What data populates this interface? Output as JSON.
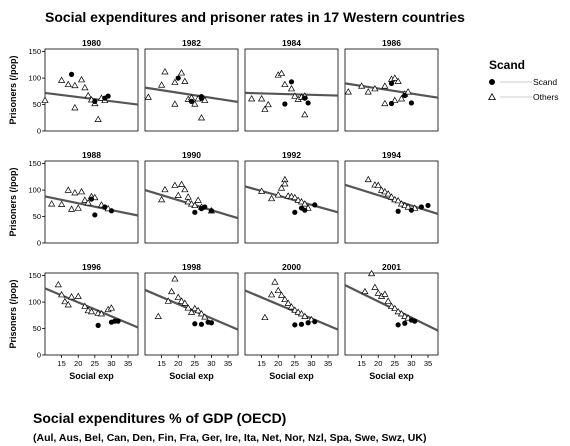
{
  "title": "Social expenditures and prisoner rates in 17 Western countries",
  "bottom_title": "Social expenditures % of GDP (OECD)",
  "countries": "(Aul, Aus, Bel, Can, Den, Fin, Fra, Ger, Ire, Ita, Net, Nor, Nzl, Spa, Swe, Swz, UK)",
  "colors": {
    "points": "#000000",
    "fit_line": "#555555",
    "frame": "#000000"
  },
  "chart_data": {
    "type": "scatter",
    "layout": "4x3 small multiples",
    "xlabel": "Social exp",
    "ylabel": "Prisoners (/pop)",
    "xlim": [
      10,
      38
    ],
    "ylim": [
      0,
      155
    ],
    "x_ticks": [
      15,
      20,
      25,
      30,
      35
    ],
    "y_ticks": [
      0,
      50,
      100,
      150
    ],
    "legend": {
      "title": "Scand",
      "placement": "right",
      "items": [
        {
          "label": "Scand",
          "marker": "filled-circle"
        },
        {
          "label": "Others",
          "marker": "open-triangle"
        }
      ]
    },
    "panels": [
      {
        "year": "1980",
        "line": [
          [
            10,
            72
          ],
          [
            38,
            50
          ]
        ],
        "scand": [
          [
            18,
            107
          ],
          [
            28,
            62
          ],
          [
            29,
            66
          ],
          [
            25,
            56
          ]
        ],
        "others": [
          [
            10,
            58
          ],
          [
            15,
            96
          ],
          [
            17,
            88
          ],
          [
            19,
            86
          ],
          [
            19,
            44
          ],
          [
            21,
            97
          ],
          [
            22,
            82
          ],
          [
            23,
            67
          ],
          [
            24,
            59
          ],
          [
            25,
            52
          ],
          [
            27,
            62
          ],
          [
            28,
            58
          ],
          [
            26,
            22
          ]
        ]
      },
      {
        "year": "1982",
        "line": [
          [
            10,
            82
          ],
          [
            38,
            55
          ]
        ],
        "scand": [
          [
            20,
            100
          ],
          [
            27,
            65
          ],
          [
            27,
            62
          ],
          [
            24,
            56
          ]
        ],
        "others": [
          [
            11,
            64
          ],
          [
            15,
            87
          ],
          [
            16,
            112
          ],
          [
            19,
            92
          ],
          [
            19,
            51
          ],
          [
            21,
            110
          ],
          [
            22,
            94
          ],
          [
            23,
            60
          ],
          [
            24,
            63
          ],
          [
            25,
            51
          ],
          [
            26,
            61
          ],
          [
            28,
            58
          ],
          [
            27,
            25
          ]
        ]
      },
      {
        "year": "1984",
        "line": [
          [
            10,
            72
          ],
          [
            38,
            67
          ]
        ],
        "scand": [
          [
            24,
            93
          ],
          [
            29,
            53
          ],
          [
            28,
            62
          ],
          [
            22,
            51
          ]
        ],
        "others": [
          [
            12,
            61
          ],
          [
            15,
            61
          ],
          [
            16,
            41
          ],
          [
            17,
            50
          ],
          [
            20,
            106
          ],
          [
            21,
            109
          ],
          [
            22,
            88
          ],
          [
            24,
            80
          ],
          [
            25,
            66
          ],
          [
            26,
            60
          ],
          [
            27,
            64
          ],
          [
            28,
            66
          ],
          [
            28,
            31
          ]
        ]
      },
      {
        "year": "1986",
        "line": [
          [
            10,
            90
          ],
          [
            38,
            63
          ]
        ],
        "scand": [
          [
            24,
            90
          ],
          [
            30,
            53
          ],
          [
            28,
            67
          ],
          [
            24,
            52
          ]
        ],
        "others": [
          [
            11,
            74
          ],
          [
            15,
            85
          ],
          [
            17,
            74
          ],
          [
            19,
            80
          ],
          [
            22,
            85
          ],
          [
            24,
            98
          ],
          [
            25,
            100
          ],
          [
            26,
            94
          ],
          [
            27,
            61
          ],
          [
            28,
            70
          ],
          [
            29,
            74
          ],
          [
            25,
            58
          ],
          [
            22,
            52
          ]
        ]
      },
      {
        "year": "1988",
        "line": [
          [
            10,
            88
          ],
          [
            38,
            52
          ]
        ],
        "scand": [
          [
            24,
            83
          ],
          [
            30,
            61
          ],
          [
            28,
            68
          ],
          [
            25,
            53
          ]
        ],
        "others": [
          [
            12,
            74
          ],
          [
            15,
            73
          ],
          [
            17,
            100
          ],
          [
            18,
            64
          ],
          [
            19,
            95
          ],
          [
            20,
            66
          ],
          [
            21,
            97
          ],
          [
            22,
            81
          ],
          [
            23,
            76
          ],
          [
            24,
            88
          ],
          [
            25,
            86
          ],
          [
            27,
            72
          ],
          [
            29,
            65
          ]
        ]
      },
      {
        "year": "1990",
        "line": [
          [
            10,
            100
          ],
          [
            38,
            47
          ]
        ],
        "scand": [
          [
            28,
            68
          ],
          [
            25,
            58
          ],
          [
            30,
            61
          ],
          [
            27,
            65
          ]
        ],
        "others": [
          [
            15,
            82
          ],
          [
            16,
            101
          ],
          [
            19,
            109
          ],
          [
            20,
            90
          ],
          [
            21,
            111
          ],
          [
            22,
            101
          ],
          [
            23,
            78
          ],
          [
            23,
            87
          ],
          [
            24,
            74
          ],
          [
            25,
            71
          ],
          [
            26,
            81
          ],
          [
            27,
            68
          ],
          [
            30,
            61
          ]
        ]
      },
      {
        "year": "1992",
        "line": [
          [
            10,
            107
          ],
          [
            38,
            58
          ]
        ],
        "scand": [
          [
            25,
            58
          ],
          [
            31,
            72
          ],
          [
            28,
            62
          ],
          [
            27,
            66
          ]
        ],
        "others": [
          [
            15,
            98
          ],
          [
            18,
            84
          ],
          [
            20,
            91
          ],
          [
            21,
            104
          ],
          [
            22,
            120
          ],
          [
            22,
            112
          ],
          [
            23,
            89
          ],
          [
            24,
            88
          ],
          [
            25,
            86
          ],
          [
            26,
            81
          ],
          [
            27,
            78
          ],
          [
            28,
            74
          ],
          [
            29,
            66
          ]
        ]
      },
      {
        "year": "1994",
        "line": [
          [
            10,
            110
          ],
          [
            38,
            55
          ]
        ],
        "scand": [
          [
            26,
            60
          ],
          [
            33,
            68
          ],
          [
            35,
            71
          ],
          [
            30,
            62
          ]
        ],
        "others": [
          [
            17,
            120
          ],
          [
            19,
            110
          ],
          [
            20,
            109
          ],
          [
            21,
            100
          ],
          [
            22,
            97
          ],
          [
            23,
            93
          ],
          [
            24,
            87
          ],
          [
            25,
            82
          ],
          [
            26,
            80
          ],
          [
            27,
            74
          ],
          [
            28,
            71
          ],
          [
            29,
            68
          ],
          [
            31,
            66
          ]
        ]
      },
      {
        "year": "1996",
        "line": [
          [
            10,
            126
          ],
          [
            38,
            52
          ]
        ],
        "scand": [
          [
            26,
            56
          ],
          [
            31,
            64
          ],
          [
            32,
            64
          ],
          [
            30,
            62
          ]
        ],
        "others": [
          [
            14,
            133
          ],
          [
            15,
            114
          ],
          [
            16,
            101
          ],
          [
            17,
            95
          ],
          [
            18,
            110
          ],
          [
            20,
            111
          ],
          [
            22,
            92
          ],
          [
            23,
            84
          ],
          [
            24,
            82
          ],
          [
            26,
            79
          ],
          [
            27,
            78
          ],
          [
            29,
            86
          ],
          [
            30,
            89
          ]
        ]
      },
      {
        "year": "1998",
        "line": [
          [
            10,
            123
          ],
          [
            38,
            48
          ]
        ],
        "scand": [
          [
            25,
            59
          ],
          [
            27,
            58
          ],
          [
            30,
            61
          ],
          [
            29,
            62
          ]
        ],
        "others": [
          [
            14,
            73
          ],
          [
            17,
            102
          ],
          [
            18,
            120
          ],
          [
            19,
            144
          ],
          [
            20,
            109
          ],
          [
            21,
            102
          ],
          [
            22,
            98
          ],
          [
            23,
            89
          ],
          [
            24,
            81
          ],
          [
            25,
            88
          ],
          [
            26,
            84
          ],
          [
            27,
            78
          ],
          [
            28,
            72
          ]
        ]
      },
      {
        "year": "2000",
        "line": [
          [
            10,
            122
          ],
          [
            38,
            48
          ]
        ],
        "scand": [
          [
            25,
            57
          ],
          [
            27,
            58
          ],
          [
            31,
            63
          ],
          [
            29,
            61
          ]
        ],
        "others": [
          [
            16,
            71
          ],
          [
            18,
            114
          ],
          [
            19,
            138
          ],
          [
            20,
            122
          ],
          [
            21,
            113
          ],
          [
            22,
            105
          ],
          [
            23,
            98
          ],
          [
            24,
            91
          ],
          [
            25,
            85
          ],
          [
            26,
            81
          ],
          [
            27,
            78
          ],
          [
            28,
            73
          ],
          [
            30,
            67
          ]
        ]
      },
      {
        "year": "2001",
        "line": [
          [
            10,
            132
          ],
          [
            38,
            46
          ]
        ],
        "scand": [
          [
            26,
            57
          ],
          [
            28,
            60
          ],
          [
            31,
            64
          ],
          [
            30,
            66
          ]
        ],
        "others": [
          [
            16,
            120
          ],
          [
            18,
            154
          ],
          [
            19,
            128
          ],
          [
            20,
            117
          ],
          [
            21,
            111
          ],
          [
            22,
            115
          ],
          [
            23,
            102
          ],
          [
            24,
            92
          ],
          [
            25,
            88
          ],
          [
            26,
            82
          ],
          [
            27,
            78
          ],
          [
            28,
            73
          ],
          [
            29,
            70
          ]
        ]
      }
    ]
  }
}
